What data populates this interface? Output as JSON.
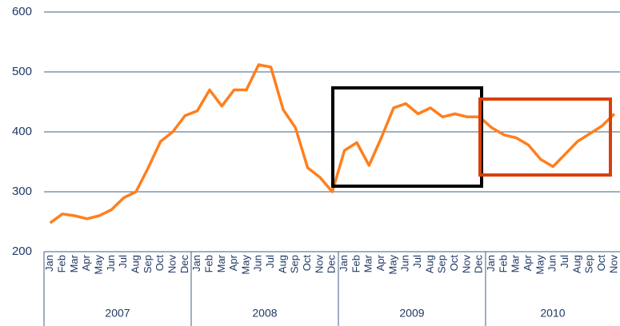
{
  "chart_data": {
    "type": "line",
    "categories": [
      "Jan",
      "Feb",
      "Mar",
      "Apr",
      "May",
      "Jun",
      "Jul",
      "Aug",
      "Sep",
      "Oct",
      "Nov",
      "Dec",
      "Jan",
      "Feb",
      "Mar",
      "Apr",
      "May",
      "Jun",
      "Jul",
      "Aug",
      "Sep",
      "Oct",
      "Nov",
      "Dec",
      "Jan",
      "Feb",
      "Mar",
      "Apr",
      "May",
      "Jun",
      "Jul",
      "Aug",
      "Sep",
      "Oct",
      "Nov",
      "Dec",
      "Jan",
      "Feb",
      "Mar",
      "Apr",
      "May",
      "Jun",
      "Jul",
      "Aug",
      "Sep",
      "Oct",
      "Nov"
    ],
    "year_groups": [
      {
        "label": "2007",
        "size": 12
      },
      {
        "label": "2008",
        "size": 12
      },
      {
        "label": "2009",
        "size": 12
      },
      {
        "label": "2010",
        "size": 11
      }
    ],
    "values": [
      248,
      263,
      260,
      255,
      260,
      270,
      290,
      300,
      340,
      384,
      400,
      427,
      435,
      470,
      443,
      470,
      470,
      512,
      508,
      437,
      407,
      340,
      324,
      300,
      369,
      382,
      344,
      390,
      440,
      447,
      430,
      440,
      425,
      430,
      425,
      425,
      407,
      395,
      390,
      378,
      354,
      342,
      363,
      384,
      397,
      410,
      430
    ],
    "color": "#ff7f1e",
    "ylim": [
      200,
      600
    ],
    "yticks": [
      200,
      300,
      400,
      500,
      600
    ],
    "grid": true
  }
}
